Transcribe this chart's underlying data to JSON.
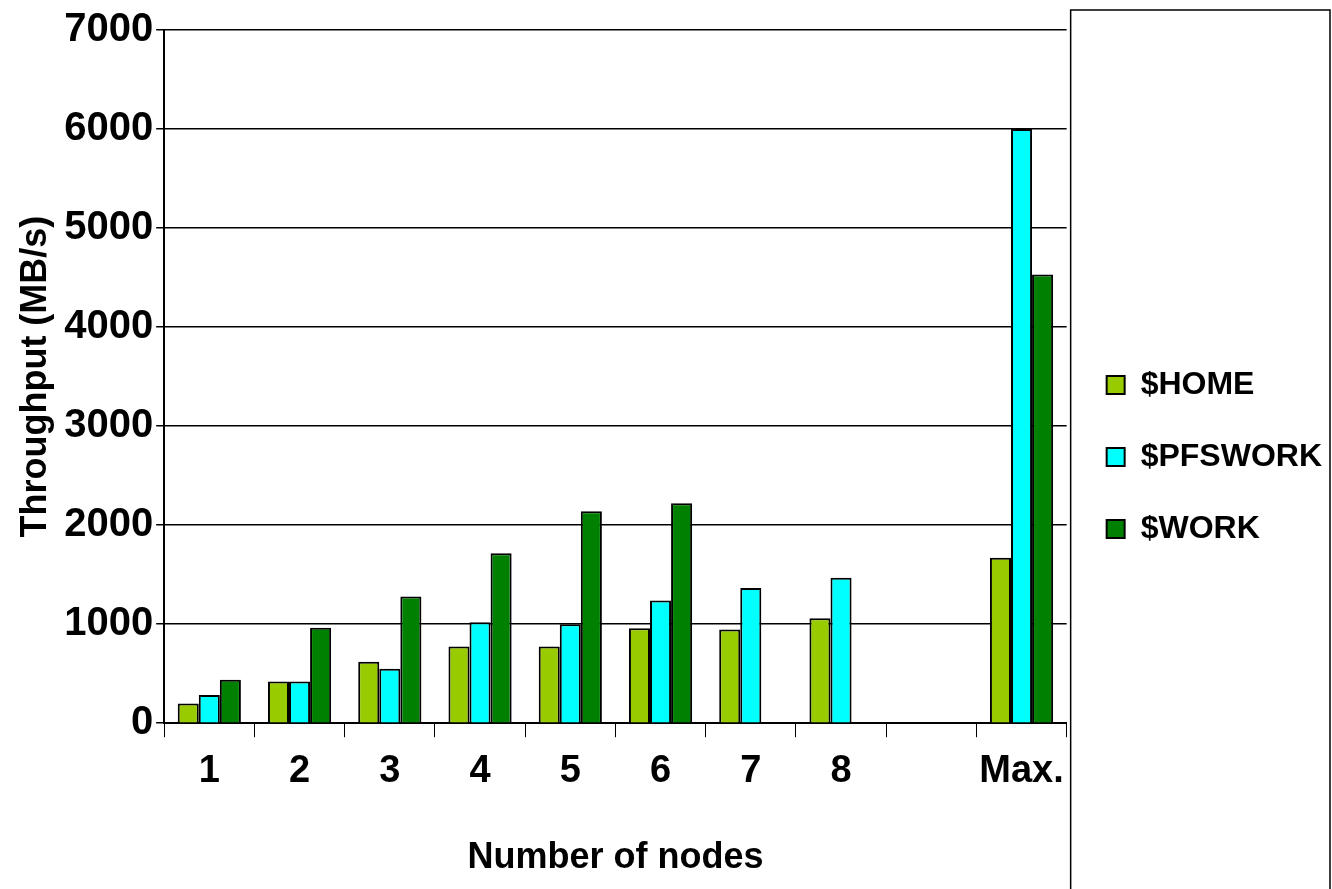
{
  "chart_data": {
    "type": "bar",
    "xlabel": "Number of nodes",
    "ylabel": "Throughput (MB/s)",
    "categories": [
      "1",
      "2",
      "3",
      "4",
      "5",
      "6",
      "7",
      "8",
      null,
      "Max."
    ],
    "series": [
      {
        "name": "$HOME",
        "color": "#99cc00",
        "values": [
          200,
          420,
          620,
          775,
          775,
          960,
          945,
          1060,
          null,
          1670
        ]
      },
      {
        "name": "$PFSWORK",
        "color": "#00ffff",
        "values": [
          285,
          420,
          550,
          1020,
          1000,
          1240,
          1365,
          1470,
          null,
          6000
        ]
      },
      {
        "name": "$WORK",
        "color": "#008000",
        "values": [
          440,
          965,
          1280,
          1715,
          2140,
          2220,
          null,
          null,
          null,
          4530
        ]
      }
    ],
    "ylim": [
      0,
      7000
    ],
    "yticks": [
      0,
      1000,
      2000,
      3000,
      4000,
      5000,
      6000,
      7000
    ],
    "grid": "y",
    "legend": "right"
  }
}
